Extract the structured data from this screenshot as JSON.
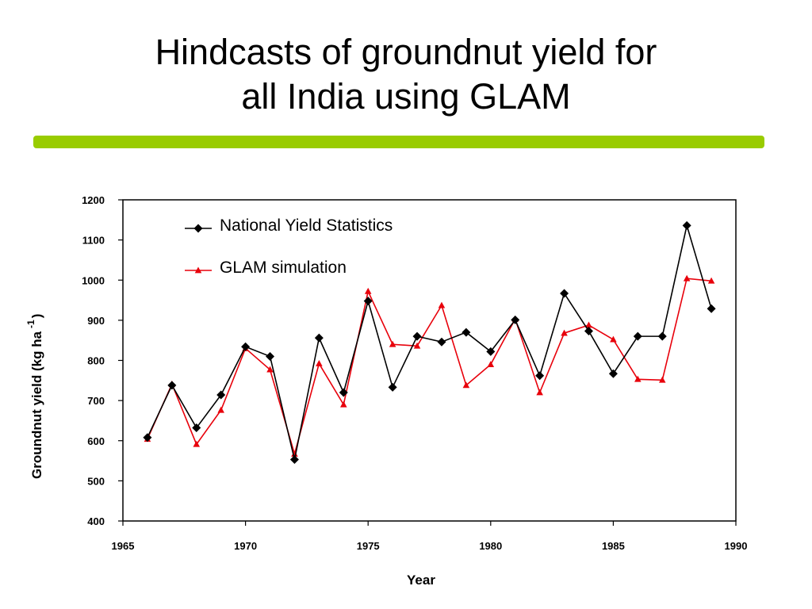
{
  "slide": {
    "title_line1": "Hindcasts of groundnut yield for",
    "title_line2": "all India using GLAM",
    "rule_color": "#99cc00"
  },
  "chart_data": {
    "type": "line",
    "xlabel": "Year",
    "ylabel": "Groundnut yield (kg ha",
    "ylabel_superscript": "-1",
    "ylabel_close": ")",
    "xlim": [
      1965,
      1990
    ],
    "ylim": [
      400,
      1200
    ],
    "x_ticks": [
      1965,
      1970,
      1975,
      1980,
      1985,
      1990
    ],
    "y_ticks": [
      400,
      500,
      600,
      700,
      800,
      900,
      1000,
      1100,
      1200
    ],
    "grid": false,
    "legend_position": "top-left inside plot",
    "x": [
      1966,
      1967,
      1968,
      1969,
      1970,
      1971,
      1972,
      1973,
      1974,
      1975,
      1976,
      1977,
      1978,
      1979,
      1980,
      1981,
      1982,
      1983,
      1984,
      1985,
      1986,
      1987,
      1988,
      1989
    ],
    "series": [
      {
        "name": "National Yield Statistics",
        "color": "#000000",
        "marker": "diamond",
        "values": [
          608,
          738,
          632,
          714,
          834,
          810,
          553,
          856,
          720,
          948,
          733,
          860,
          846,
          870,
          822,
          901,
          762,
          967,
          873,
          767,
          860,
          860,
          1136,
          929
        ]
      },
      {
        "name": "GLAM simulation",
        "color": "#e8000b",
        "marker": "triangle",
        "values": [
          604,
          741,
          591,
          676,
          830,
          777,
          567,
          792,
          690,
          972,
          840,
          836,
          937,
          738,
          790,
          903,
          720,
          868,
          888,
          852,
          753,
          751,
          1004,
          998
        ]
      }
    ]
  }
}
